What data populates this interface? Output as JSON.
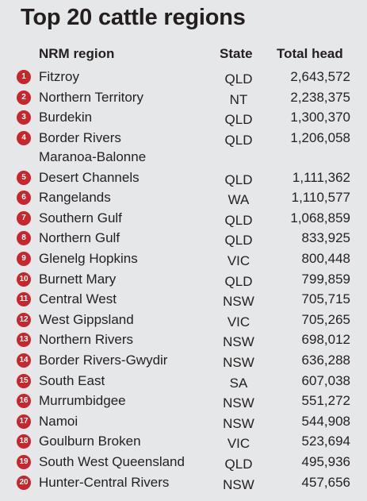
{
  "title": "Top 20 cattle regions",
  "columns": {
    "region": "NRM region",
    "state": "State",
    "total": "Total head"
  },
  "rows": [
    {
      "rank": "1",
      "region": "Fitzroy",
      "region_line2": "",
      "state": "QLD",
      "total": "2,643,572"
    },
    {
      "rank": "2",
      "region": "Northern Territory",
      "region_line2": "",
      "state": "NT",
      "total": "2,238,375"
    },
    {
      "rank": "3",
      "region": "Burdekin",
      "region_line2": "",
      "state": "QLD",
      "total": "1,300,370"
    },
    {
      "rank": "4",
      "region": "Border Rivers",
      "region_line2": "Maranoa-Balonne",
      "state": "QLD",
      "total": "1,206,058"
    },
    {
      "rank": "5",
      "region": "Desert Channels",
      "region_line2": "",
      "state": "QLD",
      "total": "1,111,362"
    },
    {
      "rank": "6",
      "region": "Rangelands",
      "region_line2": "",
      "state": "WA",
      "total": "1,110,577"
    },
    {
      "rank": "7",
      "region": "Southern Gulf",
      "region_line2": "",
      "state": "QLD",
      "total": "1,068,859"
    },
    {
      "rank": "8",
      "region": "Northern Gulf",
      "region_line2": "",
      "state": "QLD",
      "total": "833,925"
    },
    {
      "rank": "9",
      "region": "Glenelg Hopkins",
      "region_line2": "",
      "state": "VIC",
      "total": "800,448"
    },
    {
      "rank": "10",
      "region": "Burnett Mary",
      "region_line2": "",
      "state": "QLD",
      "total": "799,859"
    },
    {
      "rank": "11",
      "region": "Central West",
      "region_line2": "",
      "state": "NSW",
      "total": "705,715"
    },
    {
      "rank": "12",
      "region": "West Gippsland",
      "region_line2": "",
      "state": "VIC",
      "total": "705,265"
    },
    {
      "rank": "13",
      "region": "Northern Rivers",
      "region_line2": "",
      "state": "NSW",
      "total": "698,012"
    },
    {
      "rank": "14",
      "region": "Border Rivers-Gwydir",
      "region_line2": "",
      "state": "NSW",
      "total": "636,288"
    },
    {
      "rank": "15",
      "region": "South East",
      "region_line2": "",
      "state": "SA",
      "total": "607,038"
    },
    {
      "rank": "16",
      "region": "Murrumbidgee",
      "region_line2": "",
      "state": "NSW",
      "total": "551,272"
    },
    {
      "rank": "17",
      "region": "Namoi",
      "region_line2": "",
      "state": "NSW",
      "total": "544,908"
    },
    {
      "rank": "18",
      "region": "Goulburn Broken",
      "region_line2": "",
      "state": "VIC",
      "total": "523,694"
    },
    {
      "rank": "19",
      "region": "South West Queensland",
      "region_line2": "",
      "state": "QLD",
      "total": "495,936"
    },
    {
      "rank": "20",
      "region": "Hunter-Central Rivers",
      "region_line2": "",
      "state": "NSW",
      "total": "457,656"
    }
  ]
}
